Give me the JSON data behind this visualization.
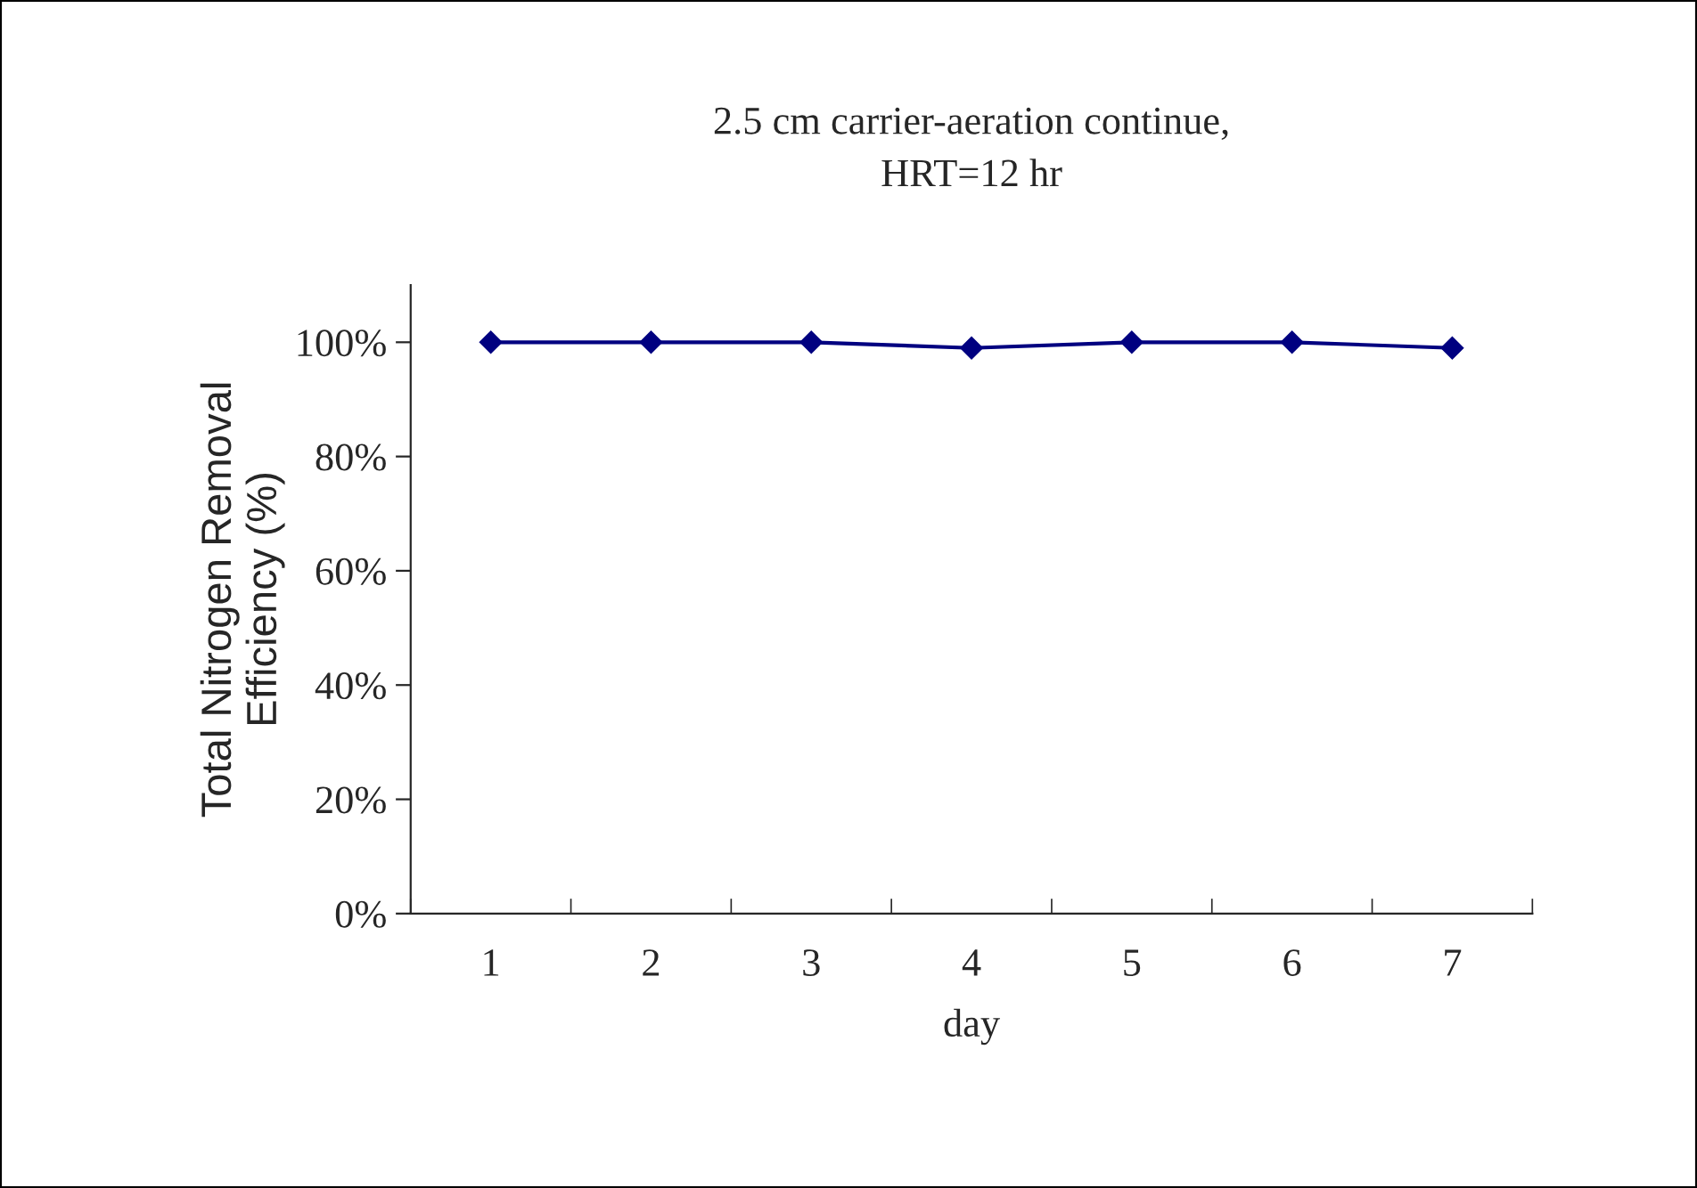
{
  "chart_data": {
    "type": "line",
    "title": "2.5 cm carrier-aeration continue,\nHRT=12 hr",
    "xlabel": "day",
    "ylabel": "Total Nitrogen Removal\nEfficiency (%)",
    "categories": [
      "1",
      "2",
      "3",
      "4",
      "5",
      "6",
      "7"
    ],
    "series": [
      {
        "color": "#000080",
        "values": [
          100,
          100,
          100,
          99,
          100,
          100,
          99
        ]
      }
    ],
    "ylim": [
      0,
      110
    ],
    "yticks": [
      {
        "value": 0,
        "label": "0%"
      },
      {
        "value": 20,
        "label": "20%"
      },
      {
        "value": 40,
        "label": "40%"
      },
      {
        "value": 60,
        "label": "60%"
      },
      {
        "value": 80,
        "label": "80%"
      },
      {
        "value": 100,
        "label": "100%"
      }
    ],
    "marker": "diamond",
    "line_style": "solid",
    "grid": false,
    "legend": false
  }
}
